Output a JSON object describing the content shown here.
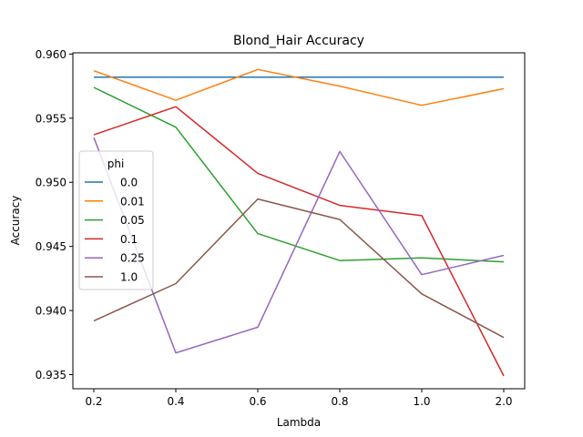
{
  "chart_data": {
    "type": "line",
    "title": "Blond_Hair Accuracy",
    "xlabel": "Lambda",
    "ylabel": "Accuracy",
    "categories": [
      "0.2",
      "0.4",
      "0.6",
      "0.8",
      "1.0",
      "2.0"
    ],
    "ylim": [
      0.9339,
      0.9601
    ],
    "yticks": [
      "0.935",
      "0.940",
      "0.945",
      "0.950",
      "0.955",
      "0.960"
    ],
    "grid": false,
    "legend": {
      "title": "phi",
      "placement": "center-left"
    },
    "series": [
      {
        "name": "0.0",
        "color": "#1f77b4",
        "values": [
          0.9582,
          0.9582,
          0.9582,
          0.9582,
          0.9582,
          0.9582
        ]
      },
      {
        "name": "0.01",
        "color": "#ff7f0e",
        "values": [
          0.9587,
          0.9564,
          0.9588,
          0.9575,
          0.956,
          0.9573
        ]
      },
      {
        "name": "0.05",
        "color": "#2ca02c",
        "values": [
          0.9574,
          0.9543,
          0.946,
          0.9439,
          0.9441,
          0.9438
        ]
      },
      {
        "name": "0.1",
        "color": "#d62728",
        "values": [
          0.9537,
          0.9559,
          0.9507,
          0.9482,
          0.9474,
          0.9349
        ]
      },
      {
        "name": "0.25",
        "color": "#9467bd",
        "values": [
          0.9535,
          0.9367,
          0.9387,
          0.9524,
          0.9428,
          0.9443
        ]
      },
      {
        "name": "1.0",
        "color": "#8c564b",
        "values": [
          0.9392,
          0.9421,
          0.9487,
          0.9471,
          0.9413,
          0.9379
        ]
      }
    ]
  }
}
